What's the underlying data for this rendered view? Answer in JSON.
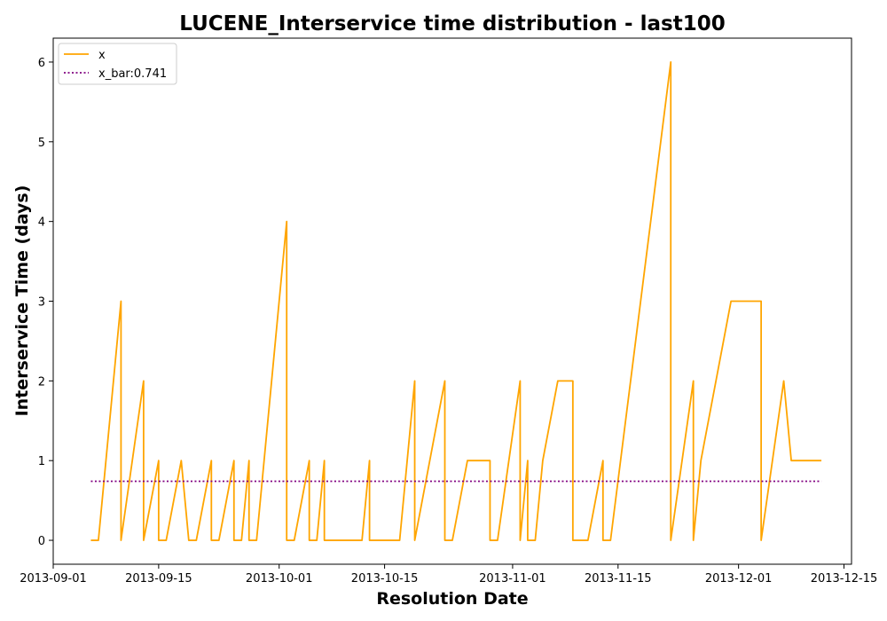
{
  "chart_data": {
    "type": "line",
    "title": "LUCENE_Interservice time distribution - last100",
    "xlabel": "Resolution Date",
    "ylabel": "Interservice Time (days)",
    "xlim": [
      "2013-09-01",
      "2013-12-16"
    ],
    "ylim": [
      -0.3,
      6.3
    ],
    "x_ticks": [
      "2013-09-01",
      "2013-09-15",
      "2013-10-01",
      "2013-10-15",
      "2013-11-01",
      "2013-11-15",
      "2013-12-01",
      "2013-12-15"
    ],
    "y_ticks": [
      0,
      1,
      2,
      3,
      4,
      5,
      6
    ],
    "grid": false,
    "legend_position": "top-left",
    "series": [
      {
        "name": "x",
        "style": "solid",
        "color": "#ffa500",
        "points": [
          [
            "2013-09-06",
            0
          ],
          [
            "2013-09-07",
            0
          ],
          [
            "2013-09-10",
            3
          ],
          [
            "2013-09-10",
            0
          ],
          [
            "2013-09-13",
            2
          ],
          [
            "2013-09-13",
            0
          ],
          [
            "2013-09-15",
            1
          ],
          [
            "2013-09-15",
            0
          ],
          [
            "2013-09-16",
            0
          ],
          [
            "2013-09-18",
            1
          ],
          [
            "2013-09-19",
            0
          ],
          [
            "2013-09-20",
            0
          ],
          [
            "2013-09-22",
            1
          ],
          [
            "2013-09-22",
            0
          ],
          [
            "2013-09-23",
            0
          ],
          [
            "2013-09-25",
            1
          ],
          [
            "2013-09-25",
            0
          ],
          [
            "2013-09-26",
            0
          ],
          [
            "2013-09-27",
            1
          ],
          [
            "2013-09-27",
            0
          ],
          [
            "2013-09-28",
            0
          ],
          [
            "2013-10-02",
            4
          ],
          [
            "2013-10-02",
            0
          ],
          [
            "2013-10-03",
            0
          ],
          [
            "2013-10-05",
            1
          ],
          [
            "2013-10-05",
            0
          ],
          [
            "2013-10-06",
            0
          ],
          [
            "2013-10-07",
            1
          ],
          [
            "2013-10-07",
            0
          ],
          [
            "2013-10-12",
            0
          ],
          [
            "2013-10-13",
            1
          ],
          [
            "2013-10-13",
            0
          ],
          [
            "2013-10-17",
            0
          ],
          [
            "2013-10-19",
            2
          ],
          [
            "2013-10-19",
            0
          ],
          [
            "2013-10-23",
            2
          ],
          [
            "2013-10-23",
            0
          ],
          [
            "2013-10-24",
            0
          ],
          [
            "2013-10-26",
            1
          ],
          [
            "2013-10-29",
            1
          ],
          [
            "2013-10-29",
            0
          ],
          [
            "2013-10-30",
            0
          ],
          [
            "2013-11-02",
            2
          ],
          [
            "2013-11-02",
            0
          ],
          [
            "2013-11-03",
            1
          ],
          [
            "2013-11-03",
            0
          ],
          [
            "2013-11-04",
            0
          ],
          [
            "2013-11-05",
            1
          ],
          [
            "2013-11-07",
            2
          ],
          [
            "2013-11-09",
            2
          ],
          [
            "2013-11-09",
            0
          ],
          [
            "2013-11-11",
            0
          ],
          [
            "2013-11-13",
            1
          ],
          [
            "2013-11-13",
            0
          ],
          [
            "2013-11-14",
            0
          ],
          [
            "2013-11-22",
            6
          ],
          [
            "2013-11-22",
            0
          ],
          [
            "2013-11-25",
            2
          ],
          [
            "2013-11-25",
            0
          ],
          [
            "2013-11-26",
            1
          ],
          [
            "2013-11-30",
            3
          ],
          [
            "2013-12-04",
            3
          ],
          [
            "2013-12-04",
            0
          ],
          [
            "2013-12-07",
            2
          ],
          [
            "2013-12-08",
            1
          ],
          [
            "2013-12-12",
            1
          ]
        ]
      },
      {
        "name": "x_bar:0.741",
        "style": "dotted",
        "color": "#800080",
        "points": [
          [
            "2013-09-06",
            0.741
          ],
          [
            "2013-12-12",
            0.741
          ]
        ]
      }
    ]
  }
}
